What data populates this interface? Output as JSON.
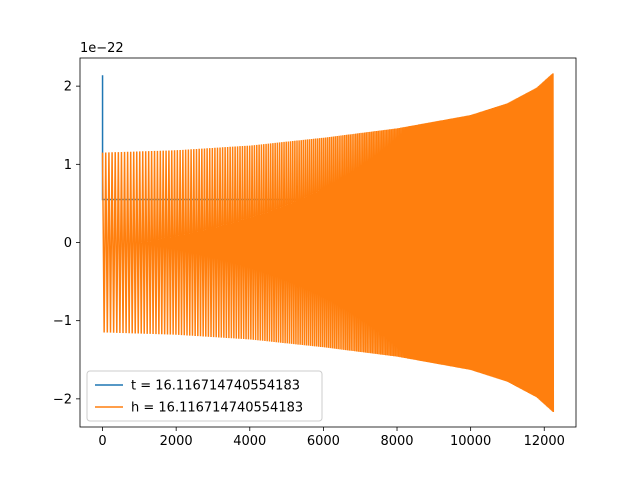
{
  "chart_data": {
    "type": "line",
    "title": "",
    "xlabel": "",
    "ylabel": "",
    "y_scale_label": "1e−22",
    "xlim": [
      -612.5,
      12862.5
    ],
    "ylim": [
      -2.36,
      2.36
    ],
    "x_ticks": [
      0,
      2000,
      4000,
      6000,
      8000,
      10000,
      12000
    ],
    "x_tick_labels": [
      "0",
      "2000",
      "4000",
      "6000",
      "8000",
      "10000",
      "12000"
    ],
    "y_ticks": [
      -2,
      -1,
      0,
      1,
      2
    ],
    "y_tick_labels": [
      "−2",
      "−1",
      "0",
      "1",
      "2"
    ],
    "grid": false,
    "legend_position": "lower-left",
    "series": [
      {
        "name": "t = 16.116714740554183",
        "color": "#1f77b4",
        "description_points": {
          "x": [
            0,
            0,
            0,
            12250
          ],
          "y": [
            0.55,
            2.14,
            0.55,
            0.55
          ]
        }
      },
      {
        "name": "h = 16.116714740554183",
        "color": "#ff7f0e",
        "envelope": {
          "x": [
            0,
            2000,
            4000,
            6000,
            8000,
            10000,
            11000,
            11800,
            12250
          ],
          "y": [
            1.15,
            1.18,
            1.24,
            1.34,
            1.46,
            1.63,
            1.78,
            1.98,
            2.17
          ]
        },
        "x_end": 12250
      }
    ]
  }
}
